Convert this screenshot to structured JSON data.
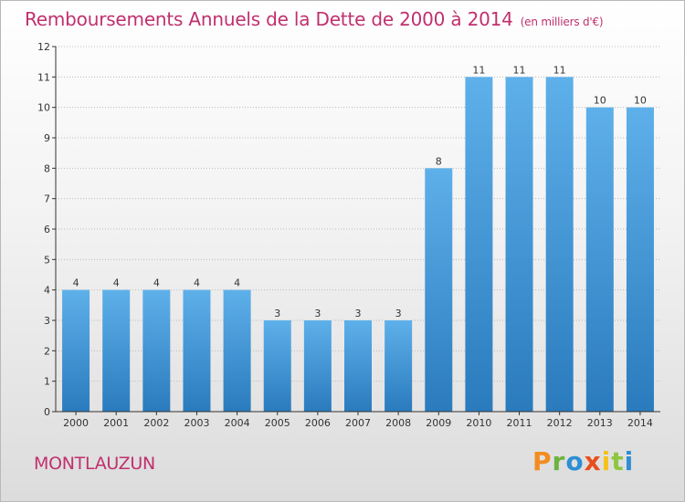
{
  "header": {
    "title": "Remboursements Annuels de la Dette de 2000 à 2014",
    "unit": "(en milliers d'€)"
  },
  "footer": {
    "commune": "MONTLAUZUN",
    "logo_text": "Proxiti"
  },
  "colors": {
    "title": "#c0306e",
    "bar_top": "#5eb0ea",
    "bar_bottom": "#2a7bbd",
    "axis": "#333333",
    "grid": "#bbbbbb"
  },
  "chart_data": {
    "type": "bar",
    "categories": [
      "2000",
      "2001",
      "2002",
      "2003",
      "2004",
      "2005",
      "2006",
      "2007",
      "2008",
      "2009",
      "2010",
      "2011",
      "2012",
      "2013",
      "2014"
    ],
    "values": [
      4,
      4,
      4,
      4,
      4,
      3,
      3,
      3,
      3,
      8,
      11,
      11,
      11,
      10,
      10
    ],
    "ylim": [
      0,
      12
    ],
    "yticks": [
      0,
      1,
      2,
      3,
      4,
      5,
      6,
      7,
      8,
      9,
      10,
      11,
      12
    ],
    "grid": true,
    "data_labels": true
  }
}
